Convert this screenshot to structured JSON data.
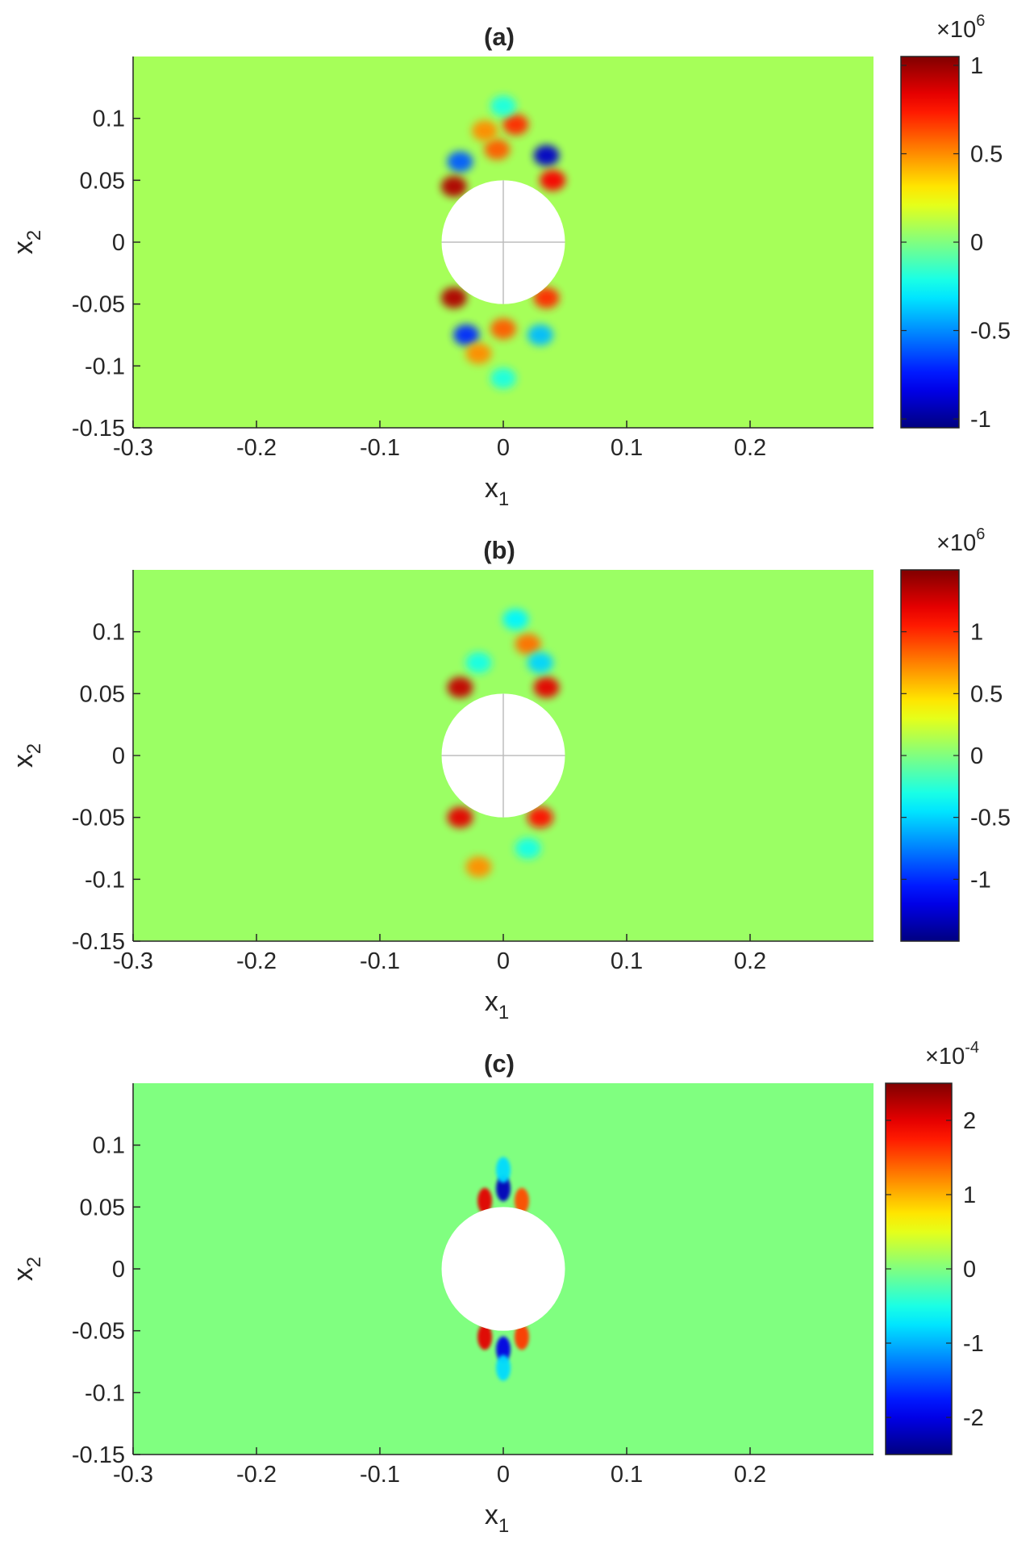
{
  "chart_data": [
    {
      "type": "heatmap",
      "title": "(a)",
      "xlabel": "x",
      "xlabel_sub": "1",
      "ylabel": "x",
      "ylabel_sub": "2",
      "xlim": [
        -0.3,
        0.3
      ],
      "ylim": [
        -0.15,
        0.15
      ],
      "xticks": [
        -0.3,
        -0.2,
        -0.1,
        0,
        0.1,
        0.2
      ],
      "xtick_labels": [
        "-0.3",
        "-0.2",
        "-0.1",
        "0",
        "0.1",
        "0.2"
      ],
      "yticks": [
        -0.15,
        -0.1,
        -0.05,
        0,
        0.05,
        0.1
      ],
      "ytick_labels": [
        "-0.15",
        "-0.1",
        "-0.05",
        "0",
        "0.05",
        "0.1"
      ],
      "hole": {
        "cx": 0,
        "cy": 0,
        "r": 0.05
      },
      "colormap": "jet",
      "colorbar": {
        "clim": [
          -1.05,
          1.05
        ],
        "ticks": [
          -1,
          -0.5,
          0,
          0.5,
          1
        ],
        "tick_labels": [
          "-1",
          "-0.5",
          "0",
          "0.5",
          "1"
        ],
        "multiplier_base": "×10",
        "multiplier_exp": "6"
      },
      "background_value": 0.08,
      "features": [
        {
          "x": -0.035,
          "y": 0.065,
          "value": -0.6
        },
        {
          "x": 0.035,
          "y": 0.07,
          "value": -0.9
        },
        {
          "x": -0.005,
          "y": 0.075,
          "value": 0.6
        },
        {
          "x": 0.01,
          "y": 0.095,
          "value": 0.7
        },
        {
          "x": -0.015,
          "y": 0.09,
          "value": 0.5
        },
        {
          "x": -0.04,
          "y": 0.045,
          "value": 0.95
        },
        {
          "x": 0.04,
          "y": 0.05,
          "value": 0.8
        },
        {
          "x": -0.04,
          "y": -0.045,
          "value": 0.95
        },
        {
          "x": 0.035,
          "y": -0.045,
          "value": 0.7
        },
        {
          "x": -0.03,
          "y": -0.075,
          "value": -0.7
        },
        {
          "x": 0.03,
          "y": -0.075,
          "value": -0.4
        },
        {
          "x": 0.0,
          "y": -0.07,
          "value": 0.6
        },
        {
          "x": -0.02,
          "y": -0.09,
          "value": 0.5
        },
        {
          "x": 0.0,
          "y": 0.11,
          "value": -0.2
        },
        {
          "x": 0.0,
          "y": -0.11,
          "value": -0.2
        }
      ]
    },
    {
      "type": "heatmap",
      "title": "(b)",
      "xlabel": "x",
      "xlabel_sub": "1",
      "ylabel": "x",
      "ylabel_sub": "2",
      "xlim": [
        -0.3,
        0.3
      ],
      "ylim": [
        -0.15,
        0.15
      ],
      "xticks": [
        -0.3,
        -0.2,
        -0.1,
        0,
        0.1,
        0.2
      ],
      "xtick_labels": [
        "-0.3",
        "-0.2",
        "-0.1",
        "0",
        "0.1",
        "0.2"
      ],
      "yticks": [
        -0.15,
        -0.1,
        -0.05,
        0,
        0.05,
        0.1
      ],
      "ytick_labels": [
        "-0.15",
        "-0.1",
        "-0.05",
        "0",
        "0.05",
        "0.1"
      ],
      "hole": {
        "cx": 0,
        "cy": 0,
        "r": 0.05
      },
      "colormap": "jet",
      "colorbar": {
        "clim": [
          -1.5,
          1.5
        ],
        "ticks": [
          -1,
          -0.5,
          0,
          0.5,
          1
        ],
        "tick_labels": [
          "-1",
          "-0.5",
          "0",
          "0.5",
          "1"
        ],
        "multiplier_base": "×10",
        "multiplier_exp": "6"
      },
      "background_value": 0.08,
      "features": [
        {
          "x": -0.035,
          "y": 0.055,
          "value": 1.3
        },
        {
          "x": 0.035,
          "y": 0.055,
          "value": 1.2
        },
        {
          "x": -0.035,
          "y": -0.05,
          "value": 1.2
        },
        {
          "x": 0.03,
          "y": -0.05,
          "value": 1.1
        },
        {
          "x": 0.02,
          "y": 0.09,
          "value": 0.8
        },
        {
          "x": -0.02,
          "y": -0.09,
          "value": 0.7
        },
        {
          "x": 0.03,
          "y": 0.075,
          "value": -0.5
        },
        {
          "x": -0.02,
          "y": 0.075,
          "value": -0.3
        },
        {
          "x": 0.01,
          "y": 0.11,
          "value": -0.4
        },
        {
          "x": 0.02,
          "y": -0.075,
          "value": -0.3
        }
      ]
    },
    {
      "type": "heatmap",
      "title": "(c)",
      "xlabel": "x",
      "xlabel_sub": "1",
      "ylabel": "x",
      "ylabel_sub": "2",
      "xlim": [
        -0.3,
        0.3
      ],
      "ylim": [
        -0.15,
        0.15
      ],
      "xticks": [
        -0.3,
        -0.2,
        -0.1,
        0,
        0.1,
        0.2
      ],
      "xtick_labels": [
        "-0.3",
        "-0.2",
        "-0.1",
        "0",
        "0.1",
        "0.2"
      ],
      "yticks": [
        -0.15,
        -0.1,
        -0.05,
        0,
        0.05,
        0.1
      ],
      "ytick_labels": [
        "-0.15",
        "-0.1",
        "-0.05",
        "0",
        "0.05",
        "0.1"
      ],
      "hole": {
        "cx": 0,
        "cy": 0,
        "r": 0.05
      },
      "colormap": "jet",
      "colorbar": {
        "clim": [
          -2.5,
          2.5
        ],
        "ticks": [
          -2,
          -1,
          0,
          1,
          2
        ],
        "tick_labels": [
          "-2",
          "-1",
          "0",
          "1",
          "2"
        ],
        "multiplier_base": "×10",
        "multiplier_exp": "-4"
      },
      "background_value": 0.0,
      "features": [
        {
          "x": 0.0,
          "y": 0.065,
          "value": -2.2
        },
        {
          "x": -0.015,
          "y": 0.055,
          "value": 2.0
        },
        {
          "x": 0.015,
          "y": 0.055,
          "value": 1.5
        },
        {
          "x": 0.0,
          "y": 0.08,
          "value": -0.8
        },
        {
          "x": 0.0,
          "y": -0.065,
          "value": -2.0
        },
        {
          "x": -0.015,
          "y": -0.055,
          "value": 2.0
        },
        {
          "x": 0.015,
          "y": -0.055,
          "value": 1.6
        },
        {
          "x": 0.0,
          "y": -0.08,
          "value": -0.8
        }
      ]
    }
  ]
}
